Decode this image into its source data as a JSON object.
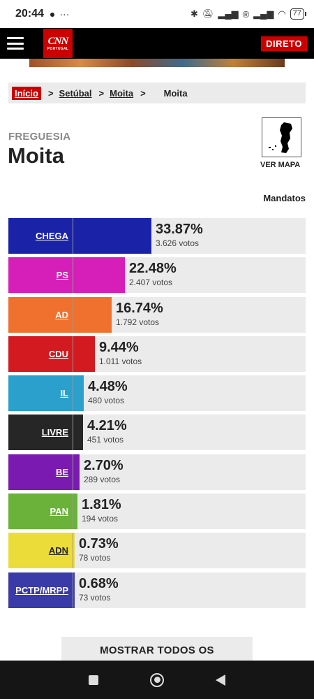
{
  "status": {
    "time": "20:44",
    "battery": "77"
  },
  "nav": {
    "logo_main": "CNN",
    "logo_sub": "PORTUGAL",
    "live_label": "DIRETO"
  },
  "breadcrumb": {
    "home": "Início",
    "sep1": ">",
    "district": "Setúbal",
    "sep2": ">",
    "municipality": "Moita",
    "sep3": ">",
    "current": "Moita"
  },
  "header": {
    "kicker": "FREGUESIA",
    "title": "Moita",
    "map_label": "VER MAPA"
  },
  "mandatos_label": "Mandatos",
  "results": [
    {
      "party": "CHEGA",
      "pct": "33.87%",
      "votes": "3.626 votos",
      "share": 0.3387,
      "color": "#1a22a8"
    },
    {
      "party": "PS",
      "pct": "22.48%",
      "votes": "2.407 votos",
      "share": 0.2248,
      "color": "#d61fb8"
    },
    {
      "party": "AD",
      "pct": "16.74%",
      "votes": "1.792 votos",
      "share": 0.1674,
      "color": "#f0702e"
    },
    {
      "party": "CDU",
      "pct": "9.44%",
      "votes": "1.011 votos",
      "share": 0.0944,
      "color": "#d21a20"
    },
    {
      "party": "IL",
      "pct": "4.48%",
      "votes": "480 votos",
      "share": 0.0448,
      "color": "#2ba0cc"
    },
    {
      "party": "LIVRE",
      "pct": "4.21%",
      "votes": "451 votos",
      "share": 0.0421,
      "color": "#262626"
    },
    {
      "party": "BE",
      "pct": "2.70%",
      "votes": "289 votos",
      "share": 0.027,
      "color": "#7a1ab0"
    },
    {
      "party": "PAN",
      "pct": "1.81%",
      "votes": "194 votos",
      "share": 0.0181,
      "color": "#6ab23a"
    },
    {
      "party": "ADN",
      "pct": "0.73%",
      "votes": "78 votos",
      "share": 0.0073,
      "color": "#ecdc3a"
    },
    {
      "party": "PCTP/MRPP",
      "pct": "0.68%",
      "votes": "73 votos",
      "share": 0.0068,
      "color": "#3a3aa8"
    }
  ],
  "show_all_label": "MOSTRAR TODOS OS"
}
